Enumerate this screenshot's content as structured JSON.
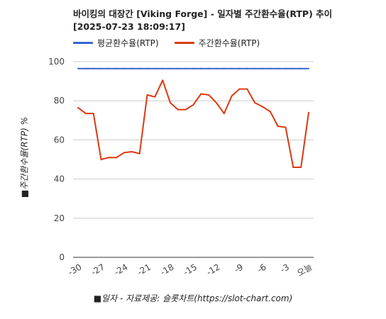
{
  "header": {
    "title_line1": "바이킹의 대장간 [Viking Forge] - 일자별 주간환수율(RTP) 추이",
    "title_line2": "[2025-07-23 18:09:17]"
  },
  "chart_data": {
    "type": "line",
    "title": "바이킹의 대장간 [Viking Forge] - 일자별 주간환수율(RTP) 추이 [2025-07-23 18:09:17]",
    "xlabel": "■일자 - 자료제공: 슬롯차트(https://slot-chart.com)",
    "ylabel": "■주간환수율(RTP) %",
    "ylim": [
      0,
      100
    ],
    "yticks": [
      0,
      20,
      40,
      60,
      80,
      100
    ],
    "grid": true,
    "legend_position": "top-left",
    "x": [
      "-30",
      "-29",
      "-28",
      "-27",
      "-26",
      "-25",
      "-24",
      "-23",
      "-22",
      "-21",
      "-20",
      "-19",
      "-18",
      "-17",
      "-16",
      "-15",
      "-14",
      "-13",
      "-12",
      "-11",
      "-10",
      "-9",
      "-8",
      "-7",
      "-6",
      "-5",
      "-4",
      "-3",
      "-2",
      "-1",
      "오늘"
    ],
    "x_tick_labels": [
      "-30",
      "-27",
      "-24",
      "-21",
      "-18",
      "-15",
      "-12",
      "-9",
      "-6",
      "-3",
      "오늘"
    ],
    "series": [
      {
        "name": "평균환수율(RTP)",
        "color": "#3366cc",
        "values": [
          96.5,
          96.5,
          96.5,
          96.5,
          96.5,
          96.5,
          96.5,
          96.5,
          96.5,
          96.5,
          96.5,
          96.5,
          96.5,
          96.5,
          96.5,
          96.5,
          96.5,
          96.5,
          96.5,
          96.5,
          96.5,
          96.5,
          96.5,
          96.5,
          96.5,
          96.5,
          96.5,
          96.5,
          96.5,
          96.5,
          96.5
        ]
      },
      {
        "name": "주간환수율(RTP)",
        "color": "#dc3912",
        "values": [
          76.5,
          73.5,
          73.5,
          50,
          51,
          51,
          53.5,
          54,
          53,
          83,
          82,
          90.5,
          79,
          75.5,
          75.5,
          78,
          83.5,
          83,
          79,
          73.5,
          82.5,
          86,
          86,
          79,
          77,
          74.5,
          67,
          66.5,
          46,
          46,
          74
        ]
      }
    ]
  }
}
